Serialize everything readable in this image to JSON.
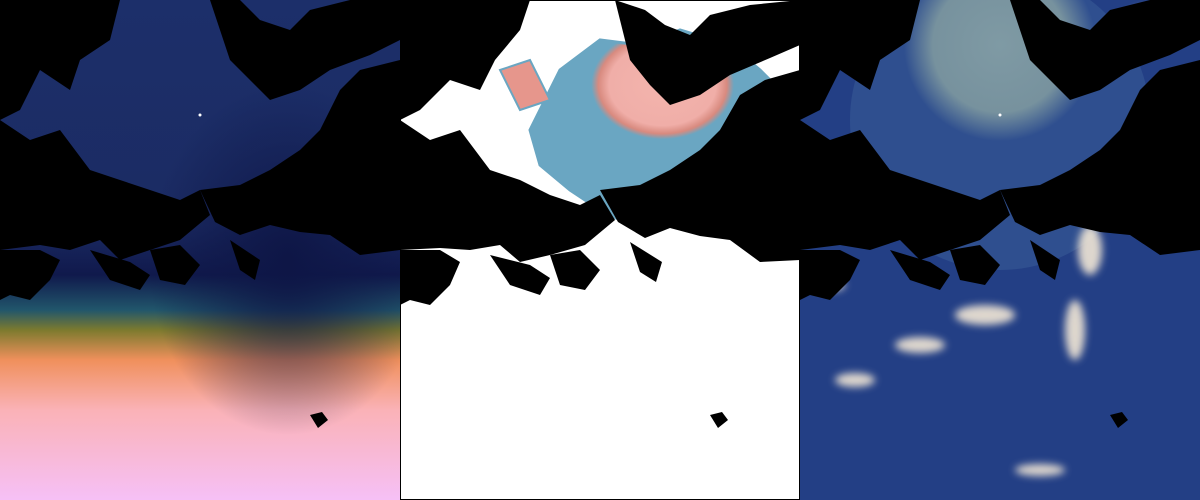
{
  "figure": {
    "panels": [
      {
        "name": "left-map-panel",
        "colormap": "navy-teal-olive-orange-pink",
        "colors": [
          "#0f1e55",
          "#1c2f6a",
          "#21566b",
          "#7c7a2e",
          "#f0905c",
          "#fab2b7",
          "#f6c0f6"
        ]
      },
      {
        "name": "middle-map-panel",
        "colormap": "white-blue-pink",
        "colors": [
          "#ffffff",
          "#6aa6c2",
          "#d88a7f",
          "#f2b2ad"
        ]
      },
      {
        "name": "right-map-panel",
        "colormap": "blue-gray-cream",
        "colors": [
          "#233f85",
          "#2f4f8f",
          "#7f9aa4",
          "#f2e7d6"
        ]
      }
    ],
    "land_color": "#000000",
    "projection": "polar-stereographic"
  }
}
